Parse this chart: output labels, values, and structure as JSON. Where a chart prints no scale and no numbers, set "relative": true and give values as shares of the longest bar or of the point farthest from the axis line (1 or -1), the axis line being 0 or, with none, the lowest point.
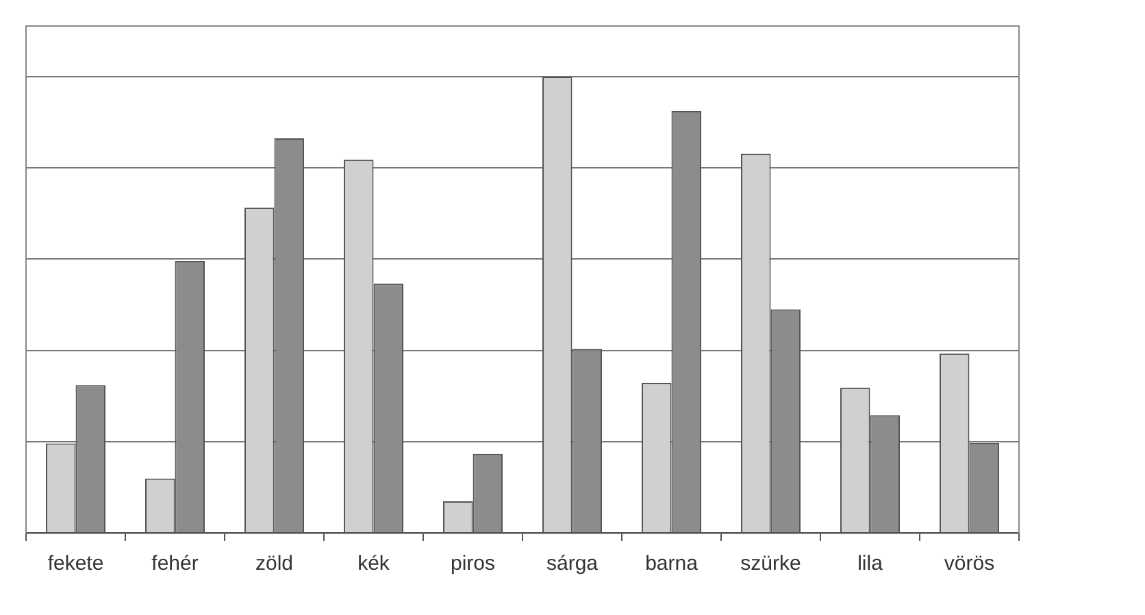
{
  "chart_data": {
    "type": "bar",
    "relative": true,
    "grid": "y",
    "categories": [
      "fekete",
      "fehér",
      "zöld",
      "kék",
      "piros",
      "sárga",
      "barna",
      "szürke",
      "lila",
      "vörös"
    ],
    "series": [
      {
        "color": "#d0d0d0",
        "values": [
          0.196,
          0.119,
          0.713,
          0.818,
          0.069,
          1,
          0.329,
          0.831,
          0.318,
          0.393
        ]
      },
      {
        "color": "#8c8c8c",
        "values": [
          0.324,
          0.596,
          0.865,
          0.546,
          0.173,
          0.403,
          0.925,
          0.49,
          0.258,
          0.197
        ]
      }
    ]
  }
}
